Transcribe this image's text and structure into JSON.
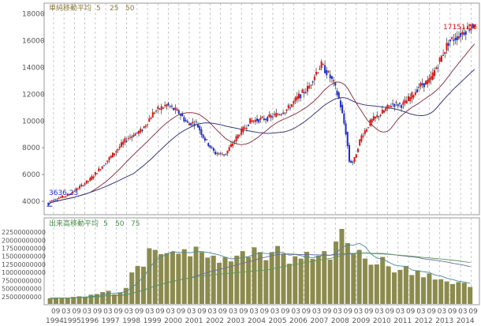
{
  "chart_data": [
    {
      "type": "candlestick",
      "panel": "price",
      "legend": {
        "title": "単純移動平均",
        "periods": [
          {
            "label": "5",
            "color": "#8a7a3c"
          },
          {
            "label": "25",
            "color": "#8a7a3c"
          },
          {
            "label": "50",
            "color": "#8a7a3c"
          }
        ]
      },
      "ylim": [
        3000,
        18800
      ],
      "yticks": [
        "18000",
        "16000",
        "14000",
        "12000",
        "10000",
        "8000",
        "6000",
        "4000"
      ],
      "ytick_values": [
        18000,
        16000,
        14000,
        12000,
        10000,
        8000,
        6000,
        4000
      ],
      "start_label": "3636.23",
      "start_value": 3636.23,
      "last_label": "17151.56",
      "last_value": 17151.56,
      "up_color": "#e01010",
      "down_color": "#1a2bd6",
      "ma25_color": "#8b3a4a",
      "ma50_color": "#3a3a7a",
      "anchors": [
        [
          1994.0,
          3700
        ],
        [
          1995.5,
          4500
        ],
        [
          1996.5,
          5600
        ],
        [
          1997.5,
          7300
        ],
        [
          1998.3,
          8700
        ],
        [
          1999.0,
          9300
        ],
        [
          1999.6,
          10700
        ],
        [
          2000.2,
          11200
        ],
        [
          2000.8,
          10600
        ],
        [
          2001.2,
          9800
        ],
        [
          2001.6,
          9900
        ],
        [
          2002.0,
          8700
        ],
        [
          2002.5,
          7600
        ],
        [
          2003.0,
          7500
        ],
        [
          2003.6,
          8900
        ],
        [
          2004.2,
          10000
        ],
        [
          2005.0,
          10200
        ],
        [
          2005.5,
          10500
        ],
        [
          2006.0,
          10900
        ],
        [
          2006.5,
          11800
        ],
        [
          2007.0,
          12500
        ],
        [
          2007.3,
          13500
        ],
        [
          2007.6,
          14200
        ],
        [
          2007.9,
          13600
        ],
        [
          2008.2,
          12800
        ],
        [
          2008.5,
          11400
        ],
        [
          2008.8,
          9000
        ],
        [
          2008.95,
          7000
        ],
        [
          2009.15,
          6900
        ],
        [
          2009.5,
          8800
        ],
        [
          2010.0,
          10000
        ],
        [
          2010.5,
          10600
        ],
        [
          2011.0,
          11300
        ],
        [
          2011.5,
          11200
        ],
        [
          2011.9,
          11800
        ],
        [
          2012.3,
          12600
        ],
        [
          2012.8,
          13000
        ],
        [
          2013.3,
          14600
        ],
        [
          2013.7,
          15900
        ],
        [
          2014.2,
          16400
        ],
        [
          2014.6,
          16900
        ],
        [
          2014.9,
          17151
        ]
      ]
    },
    {
      "type": "bar",
      "panel": "volume",
      "legend": {
        "title": "出来高移動平均",
        "periods": [
          {
            "label": "5",
            "color": "#4a8a4a"
          },
          {
            "label": "50",
            "color": "#4a8a4a"
          },
          {
            "label": "75",
            "color": "#4a8a4a"
          }
        ]
      },
      "ylim": [
        0,
        23500000000
      ],
      "yticks": [
        "22500000000",
        "20000000000",
        "17500000000",
        "15000000000",
        "12500000000",
        "10000000000",
        "7500000000",
        "5000000000",
        "2500000000"
      ],
      "ytick_values": [
        22500000000,
        20000000000,
        17500000000,
        15000000000,
        12500000000,
        10000000000,
        7500000000,
        5000000000,
        2500000000
      ],
      "bar_color": "#8b8b4e",
      "ma5_color": "#4a8a9a",
      "ma50_color": "#6a6aa0",
      "ma75_color": "#5a9a5a",
      "values": [
        2000000000,
        2100000000,
        2200000000,
        2000000000,
        2400000000,
        2600000000,
        2500000000,
        3100000000,
        3300000000,
        3900000000,
        4300000000,
        3200000000,
        3800000000,
        5200000000,
        10000000000,
        12000000000,
        11800000000,
        17500000000,
        17000000000,
        15700000000,
        16000000000,
        16400000000,
        15800000000,
        17200000000,
        15000000000,
        18000000000,
        16300000000,
        14600000000,
        15200000000,
        13000000000,
        14800000000,
        13400000000,
        15200000000,
        16600000000,
        14800000000,
        17800000000,
        16300000000,
        13800000000,
        16300000000,
        18200000000,
        15800000000,
        12700000000,
        15000000000,
        14300000000,
        16400000000,
        14200000000,
        15200000000,
        16600000000,
        14000000000,
        19600000000,
        23500000000,
        19100000000,
        16000000000,
        17000000000,
        14300000000,
        12400000000,
        12500000000,
        14800000000,
        11900000000,
        10000000000,
        10800000000,
        12000000000,
        9200000000,
        10600000000,
        8500000000,
        9700000000,
        7800000000,
        7900000000,
        7200000000,
        6400000000,
        7000000000,
        6800000000,
        5500000000
      ]
    }
  ],
  "x_axis": {
    "period_labels": [
      "09",
      "03",
      "09",
      "03",
      "09",
      "03",
      "09",
      "03",
      "09",
      "03",
      "09",
      "03",
      "09",
      "03",
      "09",
      "03",
      "09",
      "03",
      "09",
      "03",
      "09",
      "03",
      "09",
      "03",
      "09",
      "03",
      "09",
      "03",
      "09",
      "03",
      "09",
      "03",
      "09",
      "03",
      "09",
      "03",
      "09",
      "03",
      "09",
      "03",
      "09"
    ],
    "year_labels": [
      "1994",
      "1995",
      "1996",
      "1997",
      "1998",
      "1999",
      "2000",
      "2001",
      "2002",
      "2003",
      "2004",
      "2005",
      "2006",
      "2007",
      "2008",
      "2009",
      "2010",
      "2011",
      "2012",
      "2013",
      "2014"
    ],
    "range": [
      1994.4,
      2014.95
    ]
  }
}
